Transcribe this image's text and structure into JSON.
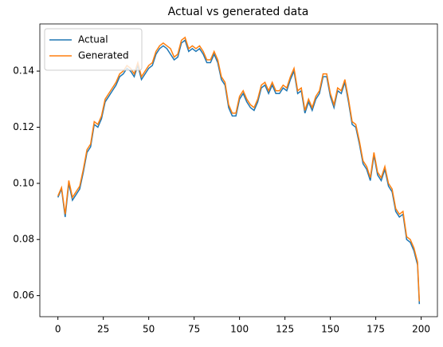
{
  "chart_data": {
    "type": "line",
    "title": "Actual vs generated data",
    "x": [
      0,
      2,
      4,
      6,
      8,
      10,
      12,
      14,
      16,
      18,
      20,
      22,
      24,
      26,
      28,
      30,
      32,
      34,
      36,
      38,
      40,
      42,
      44,
      46,
      48,
      50,
      52,
      54,
      56,
      58,
      60,
      62,
      64,
      66,
      68,
      70,
      72,
      74,
      76,
      78,
      80,
      82,
      84,
      86,
      88,
      90,
      92,
      94,
      96,
      98,
      100,
      102,
      104,
      106,
      108,
      110,
      112,
      114,
      116,
      118,
      120,
      122,
      124,
      126,
      128,
      130,
      132,
      134,
      136,
      138,
      140,
      142,
      144,
      146,
      148,
      150,
      152,
      154,
      156,
      158,
      160,
      162,
      164,
      166,
      168,
      170,
      172,
      174,
      176,
      178,
      180,
      182,
      184,
      186,
      188,
      190,
      192,
      194,
      196,
      198,
      199
    ],
    "series": [
      {
        "name": "Actual",
        "color": "#1f77b4",
        "values": [
          0.095,
          0.098,
          0.088,
          0.1,
          0.094,
          0.096,
          0.098,
          0.104,
          0.111,
          0.113,
          0.121,
          0.12,
          0.123,
          0.129,
          0.131,
          0.133,
          0.135,
          0.138,
          0.139,
          0.141,
          0.14,
          0.138,
          0.142,
          0.137,
          0.139,
          0.141,
          0.142,
          0.146,
          0.148,
          0.149,
          0.148,
          0.146,
          0.144,
          0.145,
          0.15,
          0.151,
          0.147,
          0.148,
          0.147,
          0.148,
          0.146,
          0.143,
          0.143,
          0.146,
          0.143,
          0.137,
          0.135,
          0.127,
          0.124,
          0.124,
          0.13,
          0.132,
          0.129,
          0.127,
          0.126,
          0.129,
          0.134,
          0.135,
          0.132,
          0.135,
          0.132,
          0.132,
          0.134,
          0.133,
          0.137,
          0.14,
          0.132,
          0.133,
          0.125,
          0.129,
          0.126,
          0.13,
          0.132,
          0.138,
          0.138,
          0.131,
          0.127,
          0.133,
          0.132,
          0.136,
          0.129,
          0.121,
          0.12,
          0.114,
          0.107,
          0.105,
          0.101,
          0.11,
          0.103,
          0.101,
          0.105,
          0.099,
          0.097,
          0.09,
          0.088,
          0.089,
          0.08,
          0.079,
          0.076,
          0.071,
          0.057
        ]
      },
      {
        "name": "Generated",
        "color": "#ff7f0e",
        "values": [
          0.0955,
          0.0985,
          0.089,
          0.101,
          0.095,
          0.097,
          0.099,
          0.105,
          0.112,
          0.114,
          0.122,
          0.121,
          0.124,
          0.13,
          0.132,
          0.134,
          0.136,
          0.139,
          0.14,
          0.142,
          0.141,
          0.139,
          0.143,
          0.138,
          0.14,
          0.142,
          0.143,
          0.147,
          0.149,
          0.15,
          0.149,
          0.148,
          0.145,
          0.146,
          0.151,
          0.152,
          0.148,
          0.149,
          0.148,
          0.149,
          0.147,
          0.144,
          0.144,
          0.147,
          0.144,
          0.138,
          0.136,
          0.128,
          0.125,
          0.125,
          0.131,
          0.133,
          0.13,
          0.128,
          0.127,
          0.13,
          0.135,
          0.136,
          0.133,
          0.136,
          0.133,
          0.133,
          0.135,
          0.134,
          0.138,
          0.141,
          0.133,
          0.134,
          0.126,
          0.13,
          0.127,
          0.131,
          0.133,
          0.139,
          0.139,
          0.132,
          0.128,
          0.134,
          0.133,
          0.137,
          0.13,
          0.122,
          0.121,
          0.115,
          0.108,
          0.106,
          0.102,
          0.111,
          0.104,
          0.102,
          0.106,
          0.1,
          0.098,
          0.091,
          0.089,
          0.09,
          0.081,
          0.08,
          0.077,
          0.072,
          0.058
        ]
      }
    ],
    "xlim": [
      -9.95,
      208.95
    ],
    "xticks": [
      0,
      25,
      50,
      75,
      100,
      125,
      150,
      175,
      200
    ],
    "ylim": [
      0.0525,
      0.1568
    ],
    "yticks": [
      0.06,
      0.08,
      {
        "value": 0.1,
        "label": "0.10"
      },
      0.12,
      0.14
    ],
    "legend": "upper left"
  }
}
